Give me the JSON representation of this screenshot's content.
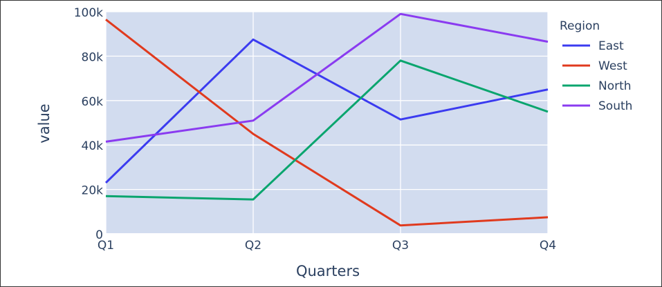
{
  "chart_data": {
    "type": "line",
    "categories": [
      "Q1",
      "Q2",
      "Q3",
      "Q4"
    ],
    "series": [
      {
        "name": "East",
        "values": [
          23000,
          87500,
          51500,
          65000
        ],
        "color": "#3b3bf0"
      },
      {
        "name": "West",
        "values": [
          96500,
          45000,
          3800,
          7500
        ],
        "color": "#e03a1e"
      },
      {
        "name": "North",
        "values": [
          17000,
          15500,
          78000,
          55000
        ],
        "color": "#0aa56e"
      },
      {
        "name": "South",
        "values": [
          41500,
          51000,
          99000,
          86500
        ],
        "color": "#8a3bf0"
      }
    ],
    "title": "",
    "xlabel": "Quarters",
    "ylabel": "value",
    "ylim": [
      0,
      100000
    ],
    "yticks": [
      {
        "value": 0,
        "label": "0"
      },
      {
        "value": 20000,
        "label": "20k"
      },
      {
        "value": 40000,
        "label": "40k"
      },
      {
        "value": 60000,
        "label": "60k"
      },
      {
        "value": 80000,
        "label": "80k"
      },
      {
        "value": 100000,
        "label": "100k"
      }
    ],
    "legend_title": "Region",
    "legend_position": "right",
    "grid": true,
    "plot_background": "#d2dcef",
    "grid_color": "#ffffff"
  }
}
